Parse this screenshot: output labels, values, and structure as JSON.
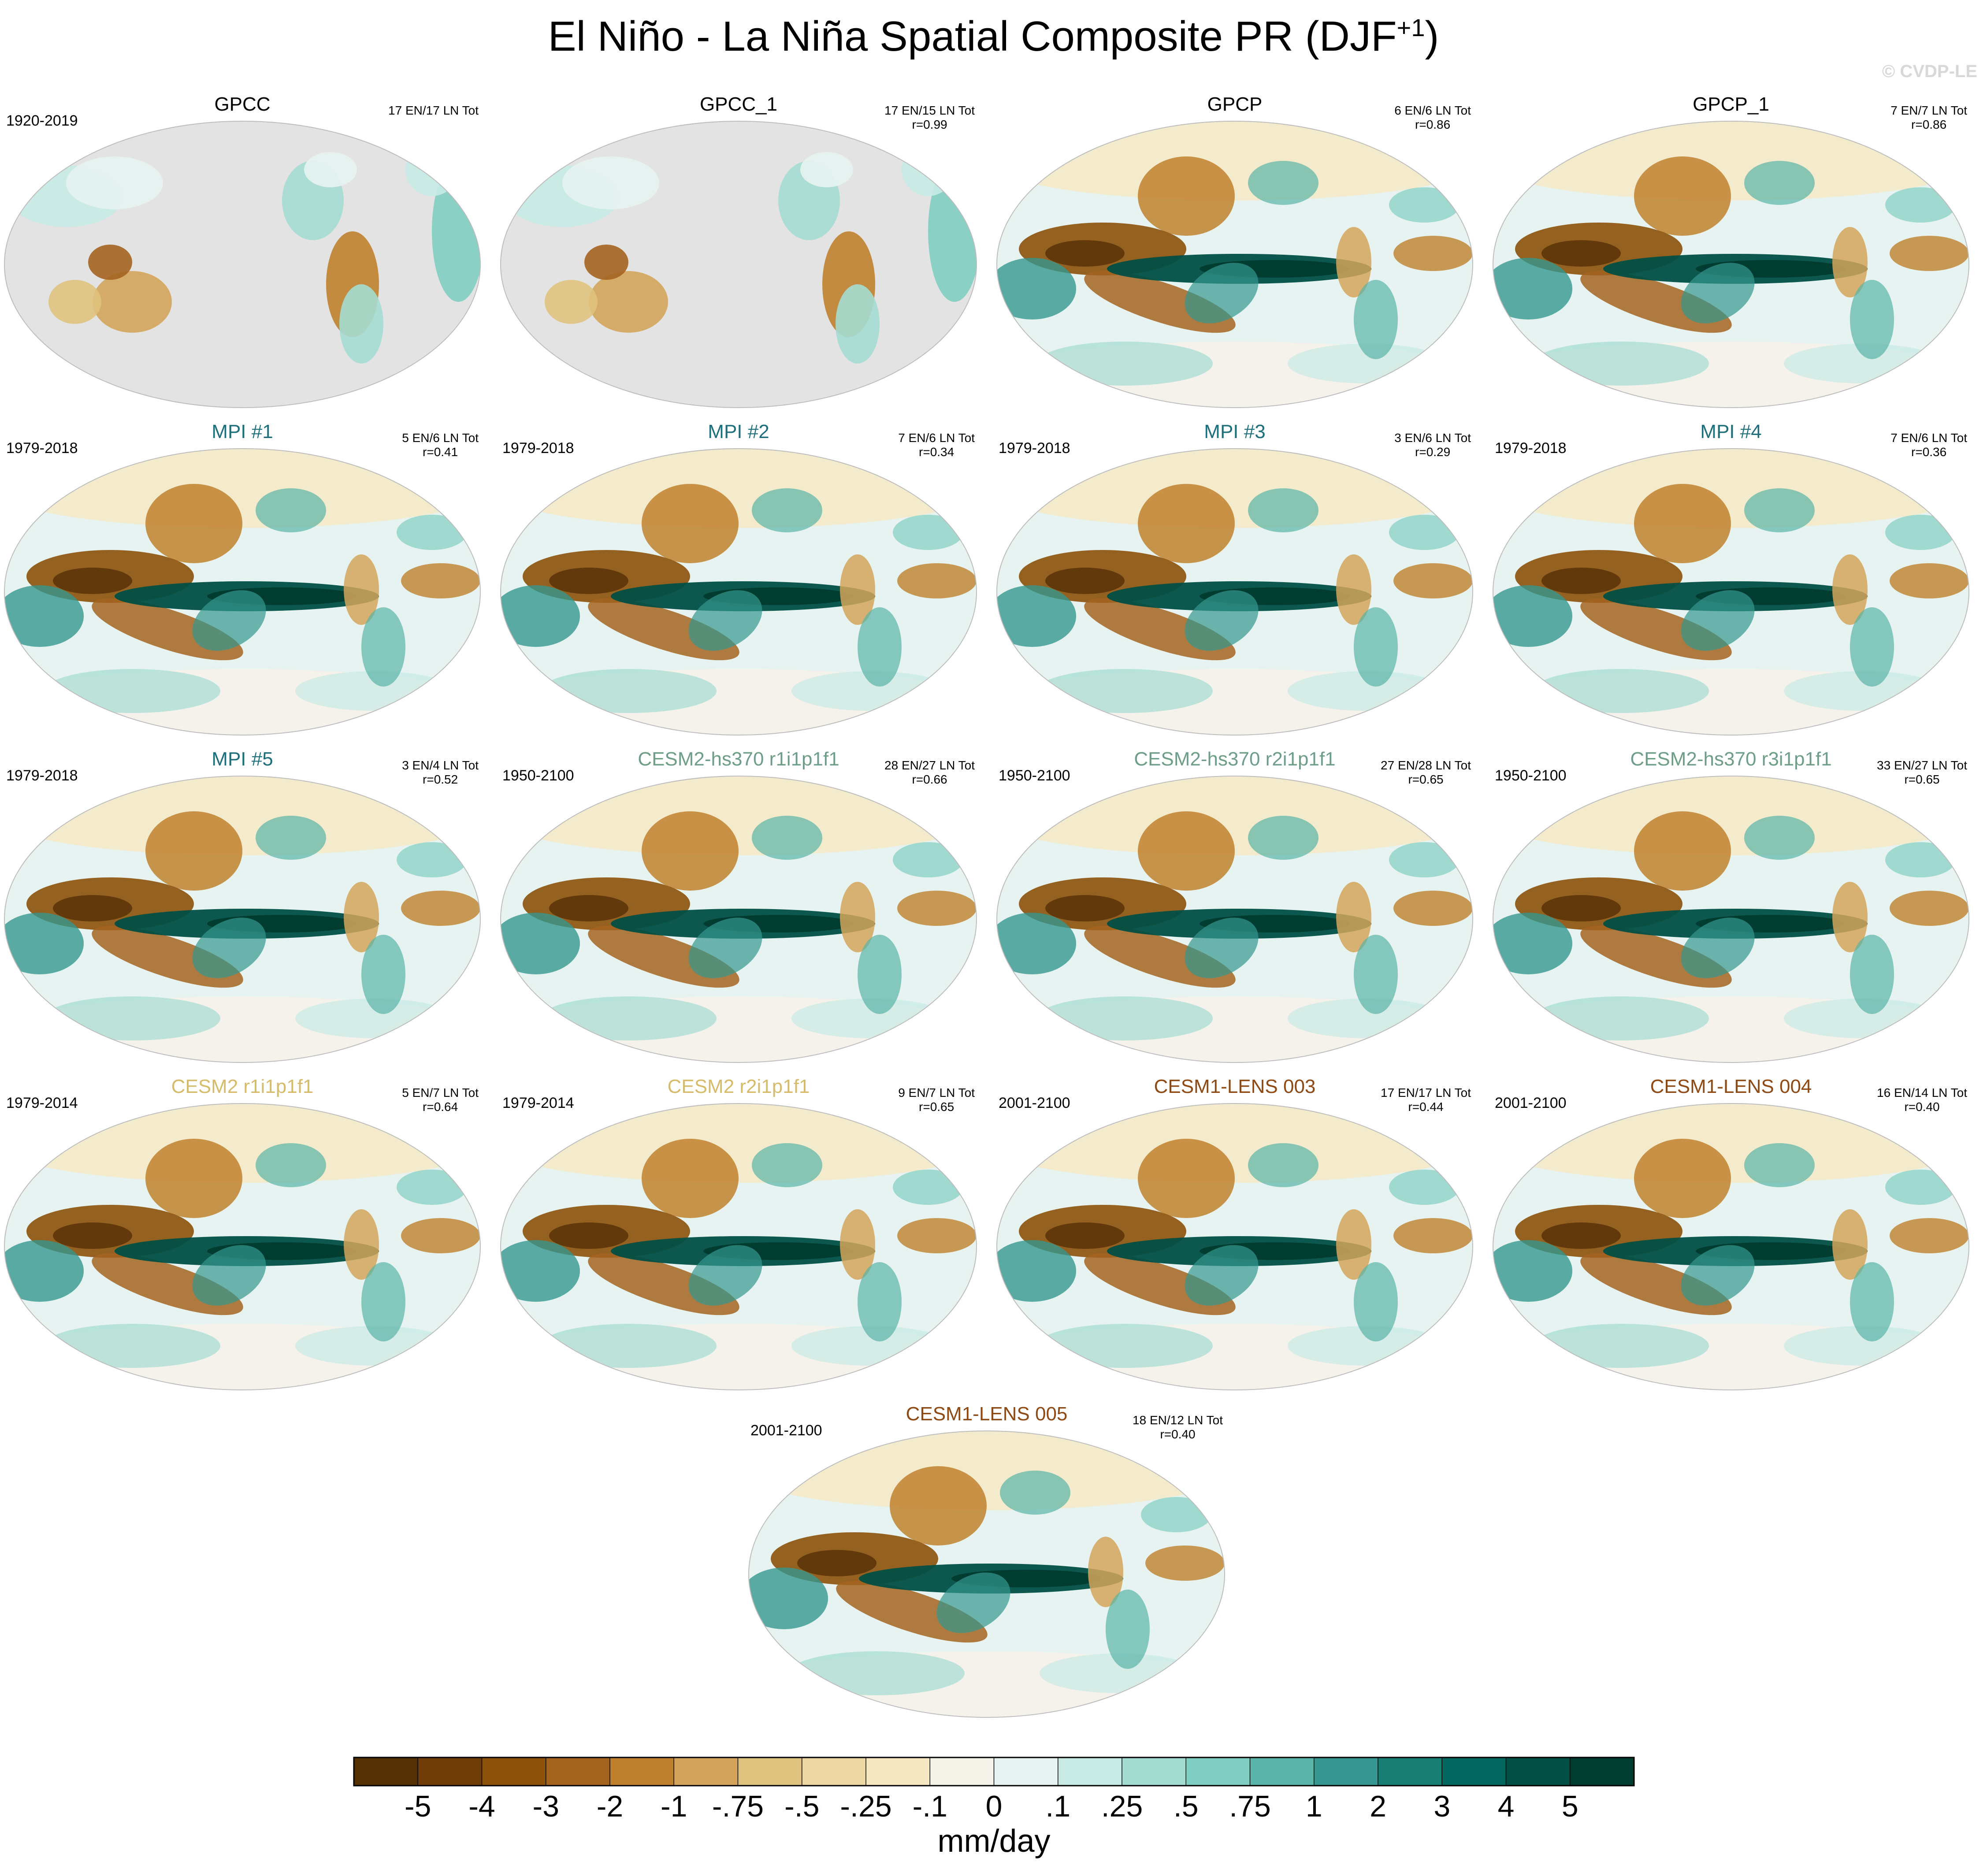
{
  "title": {
    "main": "El Niño - La Niña Spatial Composite PR (DJF",
    "sup": "+1",
    "close": ")"
  },
  "watermark": "© CVDP-LE",
  "colors": {
    "obs": "#000000",
    "mpi": "#1e6f7c",
    "cesm2hs370": "#6e9e87",
    "cesm2": "#d6bb6a",
    "cesm1": "#8f4a14",
    "land_mask": "#e3e3e3",
    "ocean_edge": "#bdbdbd"
  },
  "panels": [
    {
      "title": "GPCC",
      "period": "1920-2019",
      "counts": "17 EN/17 LN Tot",
      "r": "",
      "group": "obs",
      "pattern": "land"
    },
    {
      "title": "GPCC_1",
      "period": "",
      "counts": "17 EN/15 LN Tot",
      "r": "r=0.99",
      "group": "obs",
      "pattern": "land"
    },
    {
      "title": "GPCP",
      "period": "",
      "counts": "6 EN/6 LN Tot",
      "r": "r=0.86",
      "group": "obs",
      "pattern": "global"
    },
    {
      "title": "GPCP_1",
      "period": "",
      "counts": "7 EN/7 LN Tot",
      "r": "r=0.86",
      "group": "obs",
      "pattern": "global"
    },
    {
      "title": "MPI #1",
      "period": "1979-2018",
      "counts": "5 EN/6 LN Tot",
      "r": "r=0.41",
      "group": "mpi",
      "pattern": "global"
    },
    {
      "title": "MPI #2",
      "period": "1979-2018",
      "counts": "7 EN/6 LN Tot",
      "r": "r=0.34",
      "group": "mpi",
      "pattern": "global"
    },
    {
      "title": "MPI #3",
      "period": "1979-2018",
      "counts": "3 EN/6 LN Tot",
      "r": "r=0.29",
      "group": "mpi",
      "pattern": "global"
    },
    {
      "title": "MPI #4",
      "period": "1979-2018",
      "counts": "7 EN/6 LN Tot",
      "r": "r=0.36",
      "group": "mpi",
      "pattern": "global"
    },
    {
      "title": "MPI #5",
      "period": "1979-2018",
      "counts": "3 EN/4 LN Tot",
      "r": "r=0.52",
      "group": "mpi",
      "pattern": "global"
    },
    {
      "title": "CESM2-hs370 r1i1p1f1",
      "period": "1950-2100",
      "counts": "28 EN/27 LN Tot",
      "r": "r=0.66",
      "group": "cesm2hs370",
      "pattern": "global"
    },
    {
      "title": "CESM2-hs370 r2i1p1f1",
      "period": "1950-2100",
      "counts": "27 EN/28 LN Tot",
      "r": "r=0.65",
      "group": "cesm2hs370",
      "pattern": "global"
    },
    {
      "title": "CESM2-hs370 r3i1p1f1",
      "period": "1950-2100",
      "counts": "33 EN/27 LN Tot",
      "r": "r=0.65",
      "group": "cesm2hs370",
      "pattern": "global"
    },
    {
      "title": "CESM2 r1i1p1f1",
      "period": "1979-2014",
      "counts": "5 EN/7 LN Tot",
      "r": "r=0.64",
      "group": "cesm2",
      "pattern": "global"
    },
    {
      "title": "CESM2 r2i1p1f1",
      "period": "1979-2014",
      "counts": "9 EN/7 LN Tot",
      "r": "r=0.65",
      "group": "cesm2",
      "pattern": "global"
    },
    {
      "title": "CESM1-LENS 003",
      "period": "2001-2100",
      "counts": "17 EN/17 LN Tot",
      "r": "r=0.44",
      "group": "cesm1",
      "pattern": "global"
    },
    {
      "title": "CESM1-LENS 004",
      "period": "2001-2100",
      "counts": "16 EN/14 LN Tot",
      "r": "r=0.40",
      "group": "cesm1",
      "pattern": "global"
    },
    {
      "title": "CESM1-LENS 005",
      "period": "2001-2100",
      "counts": "18 EN/12 LN Tot",
      "r": "r=0.40",
      "group": "cesm1",
      "pattern": "global"
    }
  ],
  "colorbar": {
    "unit": "mm/day",
    "labels": [
      "-5",
      "-4",
      "-3",
      "-2",
      "-1",
      "-.75",
      "-.5",
      "-.25",
      "-.1",
      "0",
      ".1",
      ".25",
      ".5",
      ".75",
      "1",
      "2",
      "3",
      "4",
      "5"
    ],
    "colors": [
      "#543005",
      "#6e3d08",
      "#8c510a",
      "#a46420",
      "#bf812d",
      "#d3a45b",
      "#dfc27d",
      "#ecd7a5",
      "#f6e8c3",
      "#f5f2ea",
      "#e6f3f1",
      "#c7eae5",
      "#a4dcd2",
      "#80cdc1",
      "#5ab4a7",
      "#35978f",
      "#1a7d74",
      "#01665e",
      "#014f45",
      "#003c30"
    ]
  }
}
